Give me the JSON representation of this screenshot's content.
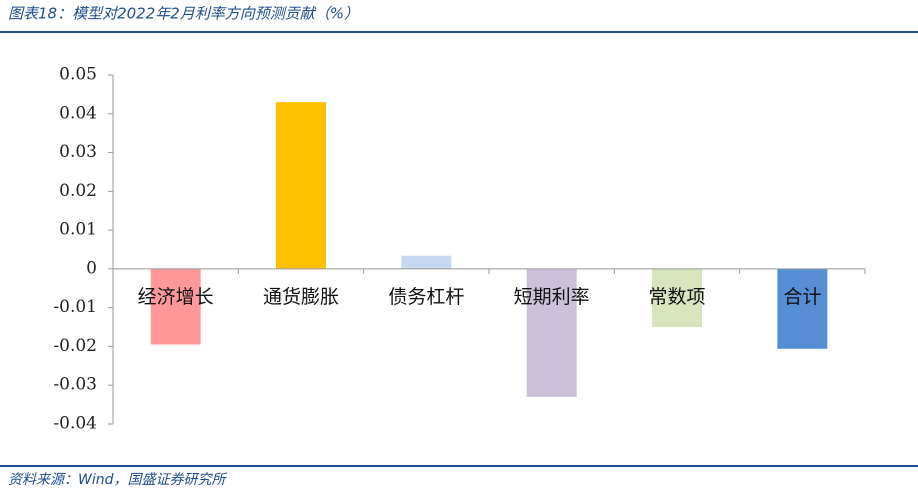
{
  "chart_data": {
    "type": "bar",
    "title": "图表18：模型对2022年2月利率方向预测贡献（%）",
    "source": "资料来源：Wind，国盛证券研究所",
    "categories": [
      "经济增长",
      "通货膨胀",
      "债务杠杆",
      "短期利率",
      "常数项",
      "合计"
    ],
    "values": [
      -0.0195,
      0.043,
      0.0034,
      -0.033,
      -0.015,
      -0.0206
    ],
    "colors": [
      "#ff9999",
      "#ffc000",
      "#c6d9f1",
      "#ccc1da",
      "#d7e4bd",
      "#558ed5"
    ],
    "ylim": [
      -0.04,
      0.05
    ],
    "yticks": [
      -0.04,
      -0.03,
      -0.02,
      -0.01,
      0,
      0.01,
      0.02,
      0.03,
      0.04,
      0.05
    ],
    "grid": false
  }
}
